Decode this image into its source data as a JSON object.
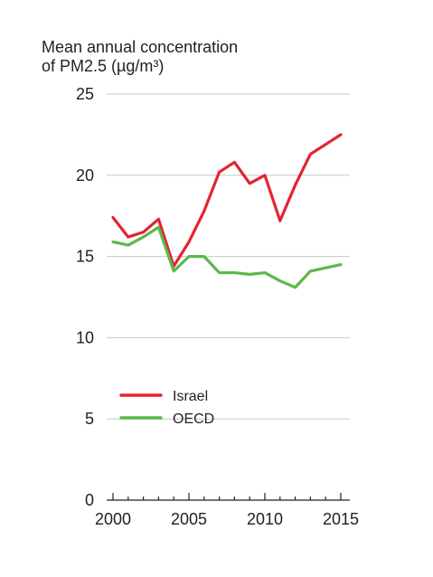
{
  "chart_data": {
    "type": "line",
    "title_lines": [
      "Mean annual concentration",
      "of PM2.5 (µg/m³)"
    ],
    "x": [
      2000,
      2001,
      2002,
      2003,
      2004,
      2005,
      2006,
      2007,
      2008,
      2009,
      2010,
      2011,
      2012,
      2013,
      2014,
      2015
    ],
    "xticks": [
      2000,
      2005,
      2010,
      2015
    ],
    "yticks": [
      0,
      5,
      10,
      15,
      20,
      25
    ],
    "xlim": [
      2000,
      2015
    ],
    "ylim": [
      0,
      25
    ],
    "grid": "horizontal",
    "legend_position": "lower-left",
    "series": [
      {
        "name": "Israel",
        "color": "#e32430",
        "values": [
          17.4,
          16.2,
          16.5,
          17.3,
          14.4,
          15.9,
          17.8,
          20.2,
          20.8,
          19.5,
          20.0,
          17.2,
          19.4,
          21.3,
          21.9,
          22.5
        ]
      },
      {
        "name": "OECD",
        "color": "#5cb84a",
        "values": [
          15.9,
          15.7,
          16.2,
          16.8,
          14.1,
          15.0,
          15.0,
          14.0,
          14.0,
          13.9,
          14.0,
          13.5,
          13.1,
          14.1,
          14.3,
          14.5
        ]
      }
    ]
  }
}
